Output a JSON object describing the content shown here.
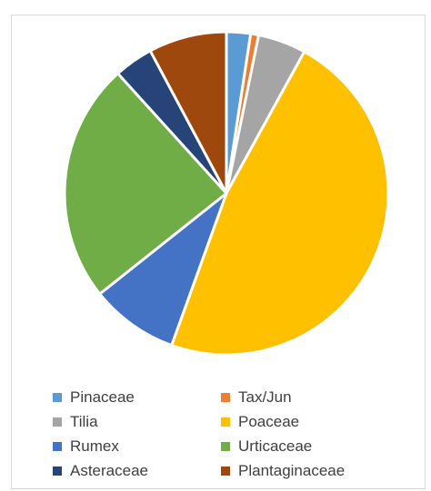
{
  "chart_data": {
    "type": "pie",
    "categories": [
      "Pinaceae",
      "Tax/Jun",
      "Tilia",
      "Poaceae",
      "Rumex",
      "Urticaceae",
      "Asteraceae",
      "Plantaginaceae"
    ],
    "values": [
      2.4,
      0.8,
      4.8,
      47.5,
      8.8,
      24.0,
      3.9,
      7.8
    ],
    "colors": [
      "#5b9bd5",
      "#ed7d31",
      "#a5a5a5",
      "#ffc000",
      "#4472c4",
      "#70ad47",
      "#264478",
      "#9e480e"
    ],
    "start_angle_deg": 0,
    "direction": "clockwise",
    "legend_position": "bottom",
    "title": ""
  }
}
